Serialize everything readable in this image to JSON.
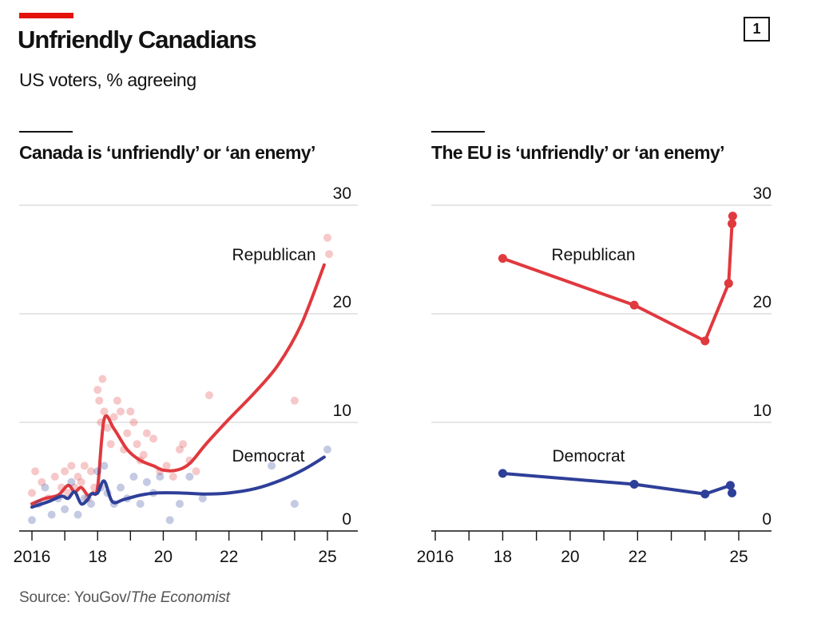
{
  "header": {
    "title": "Unfriendly Canadians",
    "subtitle": "US voters, % agreeing",
    "badge": "1"
  },
  "source": {
    "prefix": "Source: YouGov/",
    "italic": "The Economist"
  },
  "colors": {
    "accent": "#e3120b",
    "republican": "#e0393e",
    "democrat": "#2e3f99",
    "grid": "#d6d6d6",
    "axis": "#121212"
  },
  "chart_data": [
    {
      "type": "line",
      "title": "Canada is ‘unfriendly’ or ‘an enemy’",
      "ylim": [
        0,
        30
      ],
      "y_ticks": [
        0,
        10,
        20,
        30
      ],
      "x_ticks": [
        "2016",
        "18",
        "20",
        "22",
        "25"
      ],
      "x_tick_values": [
        2016,
        2018,
        2020,
        2022,
        2025
      ],
      "xlim": [
        2015.8,
        2025.4
      ],
      "grid": true,
      "series": [
        {
          "name": "Republican",
          "label_position": "above line, upper right",
          "smoothed": {
            "x": [
              2016.0,
              2016.4,
              2016.8,
              2017.1,
              2017.3,
              2017.5,
              2017.7,
              2017.85,
              2018.0,
              2018.2,
              2018.5,
              2018.9,
              2019.3,
              2019.7,
              2020.0,
              2020.4,
              2020.8,
              2021.3,
              2022.0,
              2022.8,
              2023.5,
              2024.2,
              2024.9
            ],
            "y": [
              2.5,
              3.0,
              3.3,
              4.2,
              3.6,
              4.0,
              3.3,
              3.5,
              4.0,
              10.3,
              9.4,
              7.5,
              6.5,
              6.0,
              5.6,
              5.6,
              6.2,
              8.0,
              10.3,
              12.8,
              15.3,
              19.0,
              24.5
            ]
          },
          "points": {
            "x": [
              2016.0,
              2016.1,
              2016.3,
              2016.5,
              2016.7,
              2016.9,
              2017.0,
              2017.1,
              2017.2,
              2017.3,
              2017.4,
              2017.5,
              2017.6,
              2017.7,
              2017.8,
              2017.9,
              2018.0,
              2018.05,
              2018.1,
              2018.15,
              2018.2,
              2018.3,
              2018.4,
              2018.5,
              2018.6,
              2018.7,
              2018.8,
              2018.9,
              2019.0,
              2019.1,
              2019.2,
              2019.3,
              2019.4,
              2019.5,
              2019.7,
              2019.9,
              2020.1,
              2020.3,
              2020.5,
              2020.6,
              2020.8,
              2021.0,
              2021.4,
              2024.0,
              2025.0,
              2025.05
            ],
            "y": [
              3.5,
              5.5,
              4.5,
              3.0,
              5.0,
              4.0,
              5.5,
              3.5,
              6.0,
              4.0,
              5.0,
              4.5,
              6.0,
              3.0,
              5.5,
              4.0,
              13.0,
              12.0,
              10.0,
              14.0,
              11.0,
              9.5,
              8.0,
              10.5,
              12.0,
              11.0,
              7.5,
              9.0,
              11.0,
              10.0,
              8.0,
              6.5,
              7.0,
              9.0,
              8.5,
              5.5,
              6.0,
              5.0,
              7.5,
              8.0,
              6.5,
              5.5,
              12.5,
              12.0,
              27.0,
              25.5
            ]
          }
        },
        {
          "name": "Democrat",
          "label_position": "above line, right",
          "smoothed": {
            "x": [
              2016.0,
              2016.5,
              2016.9,
              2017.1,
              2017.3,
              2017.5,
              2017.7,
              2017.8,
              2018.0,
              2018.2,
              2018.45,
              2018.8,
              2019.3,
              2019.8,
              2020.5,
              2021.3,
              2022.0,
              2022.8,
              2023.6,
              2024.3,
              2024.9
            ],
            "y": [
              2.2,
              2.7,
              3.2,
              3.0,
              3.6,
              2.5,
              2.9,
              3.4,
              3.5,
              4.6,
              2.7,
              2.9,
              3.3,
              3.5,
              3.5,
              3.4,
              3.5,
              3.9,
              4.7,
              5.7,
              6.8
            ]
          },
          "points": {
            "x": [
              2016.0,
              2016.2,
              2016.4,
              2016.6,
              2016.8,
              2017.0,
              2017.2,
              2017.4,
              2017.6,
              2017.8,
              2018.0,
              2018.1,
              2018.2,
              2018.3,
              2018.5,
              2018.7,
              2018.9,
              2019.1,
              2019.3,
              2019.5,
              2019.7,
              2019.9,
              2020.2,
              2020.5,
              2020.8,
              2021.2,
              2023.3,
              2024.0,
              2025.0
            ],
            "y": [
              1.0,
              2.5,
              4.0,
              1.5,
              3.0,
              2.0,
              4.5,
              1.5,
              3.0,
              2.5,
              5.5,
              4.0,
              6.0,
              3.5,
              2.5,
              4.0,
              3.0,
              5.0,
              2.5,
              4.5,
              3.5,
              5.0,
              1.0,
              2.5,
              5.0,
              3.0,
              6.0,
              2.5,
              7.5
            ]
          }
        }
      ]
    },
    {
      "type": "line",
      "title": "The EU is ‘unfriendly’ or ‘an enemy’",
      "ylim": [
        0,
        30
      ],
      "y_ticks": [
        0,
        10,
        20,
        30
      ],
      "x_ticks": [
        "2016",
        "18",
        "20",
        "22",
        "25"
      ],
      "x_tick_values": [
        2016,
        2018,
        2020,
        2022,
        2025
      ],
      "xlim": [
        2015.8,
        2025.4
      ],
      "grid": true,
      "series": [
        {
          "name": "Republican",
          "label_position": "above line, upper left",
          "x": [
            2018.0,
            2021.9,
            2024.0,
            2024.7,
            2024.8,
            2024.82
          ],
          "y": [
            25.1,
            20.8,
            17.5,
            22.8,
            28.3,
            29.0
          ]
        },
        {
          "name": "Democrat",
          "label_position": "above line, middle",
          "x": [
            2018.0,
            2021.9,
            2024.0,
            2024.75,
            2024.8
          ],
          "y": [
            5.3,
            4.3,
            3.4,
            4.2,
            3.5
          ]
        }
      ]
    }
  ]
}
